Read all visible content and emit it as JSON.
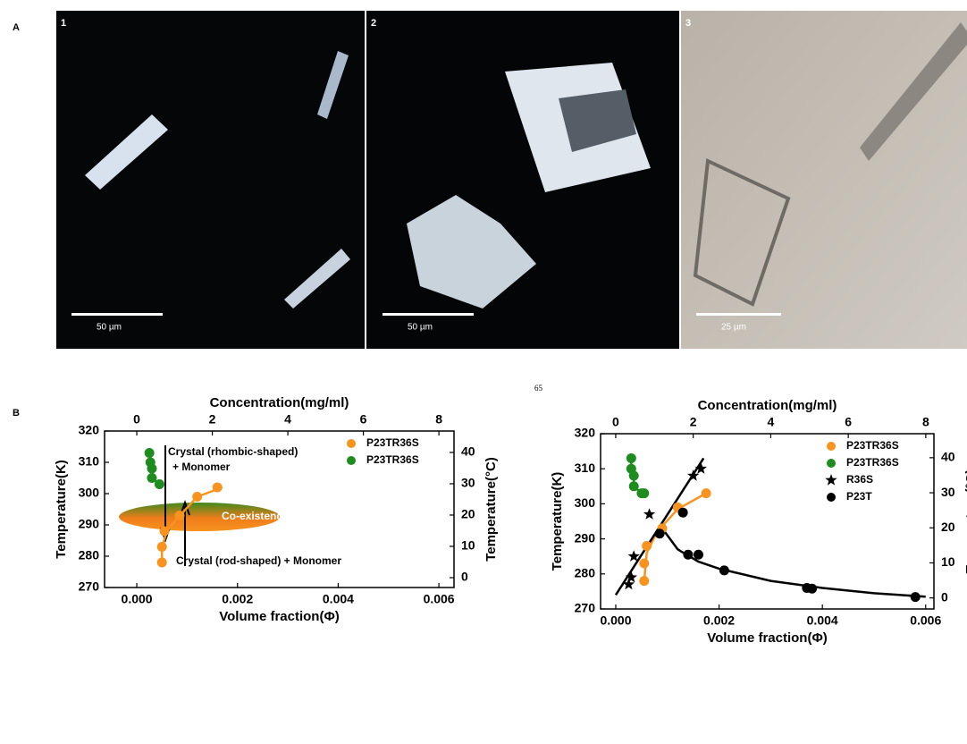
{
  "figure": {
    "panel_a": "A",
    "panel_b": "B",
    "page_number": "65",
    "images": [
      {
        "number": "1",
        "scale": "50 µm"
      },
      {
        "number": "2",
        "scale": "50 µm"
      },
      {
        "number": "3",
        "scale": "25 µm"
      }
    ]
  },
  "chart_data": [
    {
      "type": "scatter",
      "x_label": "Volume fraction(Φ)",
      "y_label": "Temperature(K)",
      "x2_label": "Concentration(mg/ml)",
      "y2_label": "Temperature(°C)",
      "xlim": [
        -0.00064,
        0.0063
      ],
      "ylim": [
        270,
        320
      ],
      "x2lim": [
        -0.853,
        8.4
      ],
      "y2lim": [
        -3.15,
        46.85
      ],
      "xticks": [
        {
          "value": 0,
          "label": "0.000"
        },
        0.002,
        0.004,
        0.006
      ],
      "yticks": [
        270,
        280,
        290,
        300,
        310,
        320
      ],
      "x2ticks": [
        0,
        2,
        4,
        6,
        8
      ],
      "y2ticks": [
        0,
        10,
        20,
        30,
        40
      ],
      "legend": "upper right",
      "annotations": [
        "Crystal (rhombic-shaped)",
        "+ Monomer",
        "Co-existence",
        "Crystal (rod-shaped) + Monomer"
      ],
      "series": [
        {
          "name": "P23TR36S",
          "color": "#f7931e",
          "marker": "circle",
          "x": [
            0.0005,
            0.0005,
            0.00055,
            0.00085,
            0.0012,
            0.0016
          ],
          "values": [
            278,
            283,
            288,
            293,
            299,
            302
          ],
          "fit_x": [
            0.0005,
            0.0005,
            0.0006,
            0.0008,
            0.0012,
            0.0017
          ],
          "fit_y": [
            278,
            283,
            288,
            292,
            299,
            302
          ]
        },
        {
          "name": "P23TR36S",
          "color": "#1e8c1e",
          "marker": "circle",
          "x": [
            0.00025,
            0.00027,
            0.0003,
            0.0003,
            0.00045
          ],
          "values": [
            313,
            310,
            308,
            305,
            303
          ],
          "fit_x": [
            0.00025,
            0.00027,
            0.0003,
            0.0003,
            0.00045
          ],
          "fit_y": [
            313,
            310,
            308,
            305,
            303
          ]
        }
      ]
    },
    {
      "type": "scatter",
      "x_label": "Volume fraction(Φ)",
      "y_label": "Temperature(K)",
      "x2_label": "Concentration(mg/ml)",
      "y2_label": "Temperature(°C)",
      "xlim": [
        -0.000294,
        0.00616
      ],
      "ylim": [
        270,
        320
      ],
      "x2lim": [
        -0.39,
        8.21
      ],
      "y2lim": [
        -3.15,
        46.85
      ],
      "xticks": [
        {
          "value": 0,
          "label": "0.000"
        },
        0.002,
        0.004,
        0.006
      ],
      "yticks": [
        270,
        280,
        290,
        300,
        310,
        320
      ],
      "x2ticks": [
        0,
        2,
        4,
        6,
        8
      ],
      "y2ticks": [
        0,
        10,
        20,
        30,
        40
      ],
      "legend": "upper right",
      "series": [
        {
          "name": "P23TR36S",
          "color": "#f7931e",
          "marker": "circle",
          "x": [
            0.00055,
            0.00055,
            0.0006,
            0.0009,
            0.0012,
            0.00175
          ],
          "values": [
            278,
            283,
            288,
            293,
            299,
            303
          ],
          "fit_x": [
            0.00055,
            0.0006,
            0.0008,
            0.0012,
            0.00175
          ],
          "fit_y": [
            278,
            286,
            292,
            298.5,
            303
          ]
        },
        {
          "name": "P23TR36S",
          "color": "#1e8c1e",
          "marker": "circle",
          "x": [
            0.0003,
            0.0003,
            0.00035,
            0.00035,
            0.0005,
            0.00055
          ],
          "values": [
            313,
            310,
            308,
            305,
            303,
            303
          ],
          "fit_x": [
            0.0003,
            0.0003,
            0.00035,
            0.00035,
            0.0005,
            0.00055
          ],
          "fit_y": [
            313,
            310,
            308,
            305,
            303,
            303
          ]
        },
        {
          "name": "R36S",
          "color": "#000000",
          "marker": "star",
          "x": [
            0.00025,
            0.0003,
            0.00035,
            0.00065,
            0.0015,
            0.00165
          ],
          "values": [
            277,
            279,
            285,
            297,
            308,
            310
          ],
          "fit_x": [
            0,
            0.0017
          ],
          "fit_y": [
            274,
            313
          ]
        },
        {
          "name": "P23T",
          "color": "#000000",
          "marker": "circle",
          "x": [
            0.00085,
            0.0013,
            0.0014,
            0.0016,
            0.0021,
            0.0037,
            0.0038,
            0.0058
          ],
          "values": [
            291.5,
            297.5,
            285.5,
            285.5,
            281,
            276,
            275.8,
            273.4
          ],
          "fit_x": [
            0.0009,
            0.0012,
            0.0016,
            0.002,
            0.003,
            0.004,
            0.005,
            0.006
          ],
          "fit_y": [
            293,
            287,
            283.5,
            281.5,
            278,
            276,
            274.5,
            273.5
          ]
        }
      ]
    }
  ]
}
